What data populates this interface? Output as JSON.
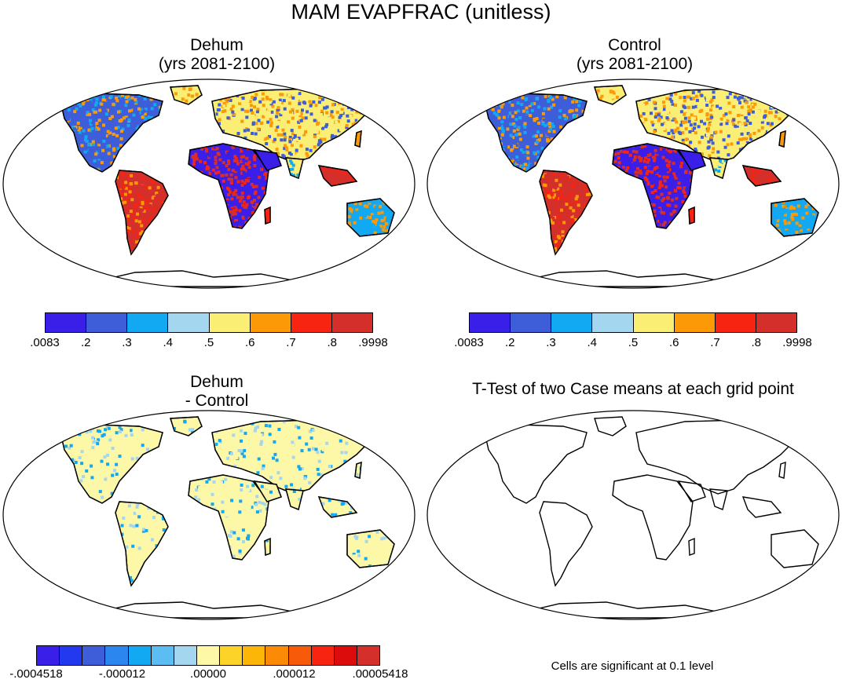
{
  "figure": {
    "title": "MAM EVAPFRAC (unitless)"
  },
  "panels": [
    {
      "id": "dehum",
      "title_line1": "Dehum",
      "title_line2": "(yrs 2081-2100)",
      "colorbar": {
        "colors": [
          "#3a1fe8",
          "#3d5ed8",
          "#12a9f2",
          "#a5d6f0",
          "#fbee75",
          "#fb9a06",
          "#f62410",
          "#d42f2b"
        ],
        "labels": [
          ".0083",
          ".2",
          ".3",
          ".4",
          ".5",
          ".6",
          ".7",
          ".8",
          ".9998"
        ]
      }
    },
    {
      "id": "control",
      "title_line1": "Control",
      "title_line2": "(yrs 2081-2100)",
      "colorbar": {
        "colors": [
          "#3a1fe8",
          "#3d5ed8",
          "#12a9f2",
          "#a5d6f0",
          "#fbee75",
          "#fb9a06",
          "#f62410",
          "#d42f2b"
        ],
        "labels": [
          ".0083",
          ".2",
          ".3",
          ".4",
          ".5",
          ".6",
          ".7",
          ".8",
          ".9998"
        ]
      }
    },
    {
      "id": "difference",
      "title_line1": "Dehum",
      "title_line2": "- Control",
      "colorbar": {
        "colors": [
          "#3a1fe8",
          "#2239f0",
          "#3d5ed8",
          "#2c86f0",
          "#12a9f2",
          "#5bbdf2",
          "#a5d6f0",
          "#fdf7a8",
          "#fbd329",
          "#fbb607",
          "#fb8a06",
          "#f75b0a",
          "#f62410",
          "#dc0c0c",
          "#d42f2b"
        ],
        "labels": [
          "-.0004518",
          "-.000012",
          ".00000",
          ".000012",
          ".00005418"
        ]
      }
    },
    {
      "id": "ttest",
      "title_line1": "T-Test of two Case means at each grid point",
      "note": "Cells are significant at 0.1 level"
    }
  ]
}
